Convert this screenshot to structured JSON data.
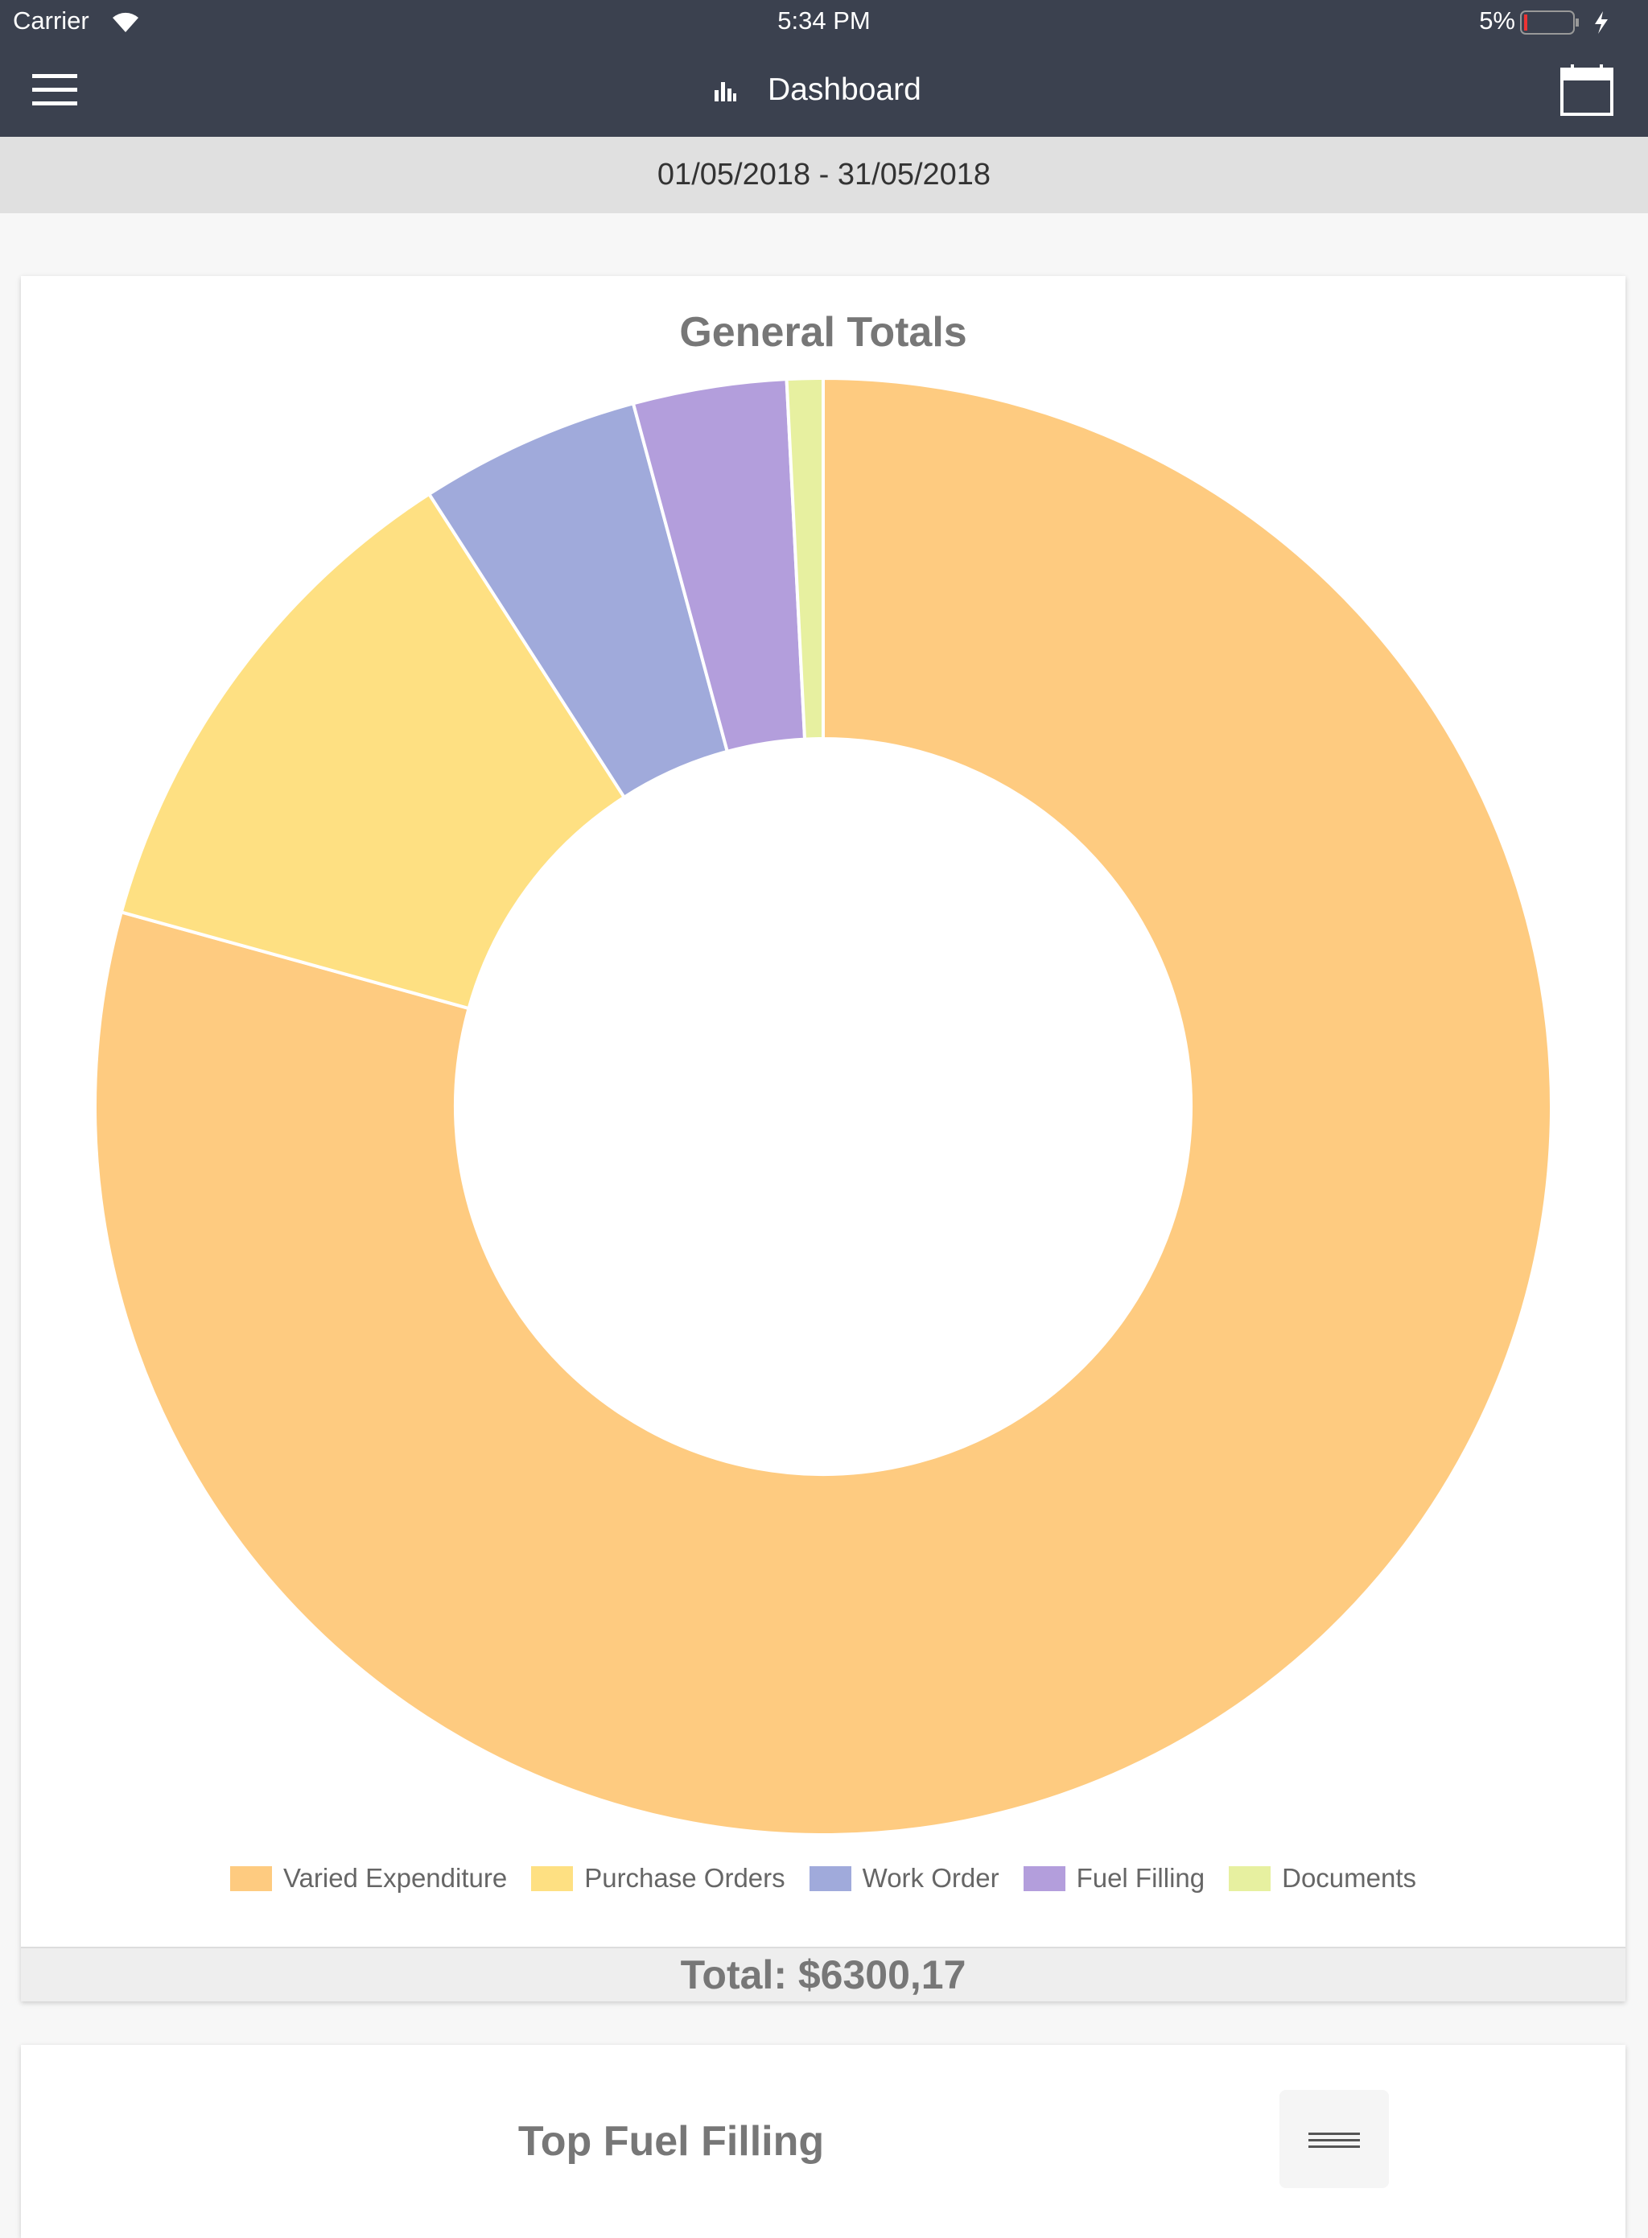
{
  "status_bar": {
    "carrier": "Carrier",
    "time": "5:34 PM",
    "battery": "5%"
  },
  "nav": {
    "title": "Dashboard"
  },
  "date_range": "01/05/2018 - 31/05/2018",
  "chart_data": {
    "type": "pie",
    "title": "General Totals",
    "donut": true,
    "categories": [
      "Varied Expenditure",
      "Purchase Orders",
      "Work Order",
      "Fuel Filling",
      "Documents"
    ],
    "values": [
      79.3,
      11.6,
      4.9,
      3.4,
      0.8
    ],
    "colors": [
      "#fecb80",
      "#fee082",
      "#a0aadb",
      "#b39edc",
      "#e7f0a0"
    ]
  },
  "total": "Total: $6300,17",
  "second_card": {
    "title": "Top Fuel Filling"
  }
}
